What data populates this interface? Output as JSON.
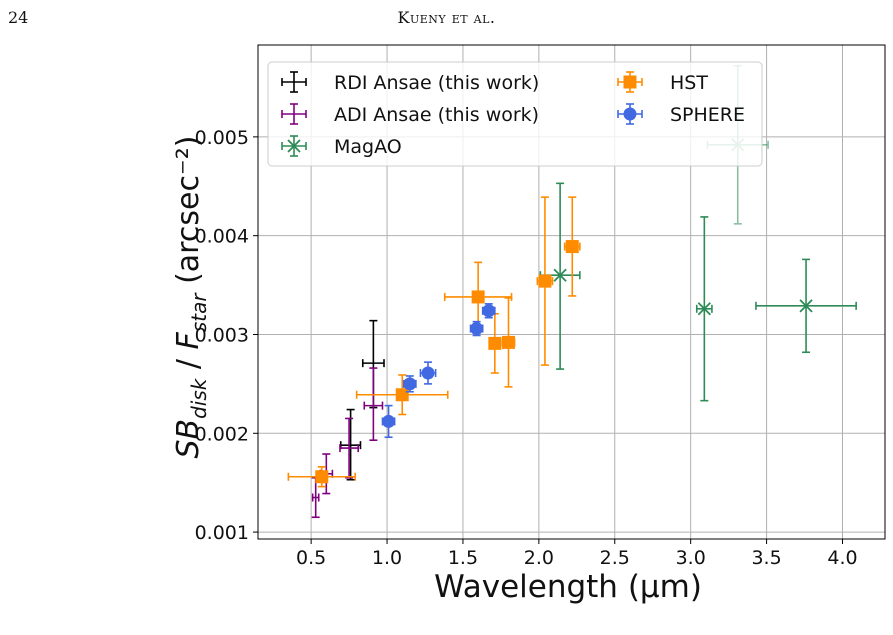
{
  "page": {
    "number": "24",
    "running_head": "Kueny et al."
  },
  "colors": {
    "rdi": "#000000",
    "adi": "#800080",
    "magao": "#2e8b57",
    "hst": "#ff8c00",
    "sphere": "#4169e1"
  },
  "chart_data": {
    "type": "scatter",
    "xlabel": "Wavelength (µm)",
    "ylabel": "SB_disk / F_star (arcsec⁻²)",
    "xlim": [
      0.15,
      4.28
    ],
    "ylim": [
      0.00093,
      0.00593
    ],
    "xticks": [
      0.5,
      1.0,
      1.5,
      2.0,
      2.5,
      3.0,
      3.5,
      4.0
    ],
    "xtick_labels": [
      "0.5",
      "1.0",
      "1.5",
      "2.0",
      "2.5",
      "3.0",
      "3.5",
      "4.0"
    ],
    "yticks": [
      0.001,
      0.002,
      0.003,
      0.004,
      0.005
    ],
    "ytick_labels": [
      "0.001",
      "0.002",
      "0.003",
      "0.004",
      "0.005"
    ],
    "grid": true,
    "legend_position": "top-left",
    "series": [
      {
        "name": "RDI Ansae (this work)",
        "marker": "none",
        "color_key": "rdi",
        "points": [
          {
            "x": 0.76,
            "y": 0.00188,
            "xerr": 0.065,
            "yerr_lo": 0.00035,
            "yerr_hi": 0.00036
          },
          {
            "x": 0.91,
            "y": 0.00271,
            "xerr": 0.07,
            "yerr_lo": 0.00045,
            "yerr_hi": 0.00043
          }
        ]
      },
      {
        "name": "ADI Ansae (this work)",
        "marker": "none",
        "color_key": "adi",
        "points": [
          {
            "x": 0.53,
            "y": 0.00135,
            "xerr": 0.02,
            "yerr_lo": 0.0002,
            "yerr_hi": 0.0002
          },
          {
            "x": 0.6,
            "y": 0.00159,
            "xerr": 0.04,
            "yerr_lo": 0.0002,
            "yerr_hi": 0.0002
          },
          {
            "x": 0.75,
            "y": 0.00185,
            "xerr": 0.06,
            "yerr_lo": 0.0003,
            "yerr_hi": 0.0003
          },
          {
            "x": 0.91,
            "y": 0.00228,
            "xerr": 0.06,
            "yerr_lo": 0.00035,
            "yerr_hi": 0.00038
          }
        ]
      },
      {
        "name": "MagAO",
        "marker": "x",
        "color_key": "magao",
        "points": [
          {
            "x": 2.14,
            "y": 0.0036,
            "xerr": 0.13,
            "yerr_lo": 0.00095,
            "yerr_hi": 0.00093,
            "faded": false
          },
          {
            "x": 3.09,
            "y": 0.00326,
            "xerr": 0.05,
            "yerr_lo": 0.00093,
            "yerr_hi": 0.00093,
            "faded": false
          },
          {
            "x": 3.76,
            "y": 0.00329,
            "xerr": 0.33,
            "yerr_lo": 0.00047,
            "yerr_hi": 0.00047,
            "faded": false
          },
          {
            "x": 3.31,
            "y": 0.00492,
            "xerr": 0.2,
            "yerr_lo": 0.0008,
            "yerr_hi": 0.0008,
            "faded": true
          }
        ]
      },
      {
        "name": "HST",
        "marker": "square",
        "color_key": "hst",
        "points": [
          {
            "x": 0.57,
            "y": 0.00156,
            "xerr": 0.22,
            "yerr_lo": 0.0001,
            "yerr_hi": 0.0001
          },
          {
            "x": 1.1,
            "y": 0.00239,
            "xerr": 0.3,
            "yerr_lo": 0.0002,
            "yerr_hi": 0.0002
          },
          {
            "x": 1.6,
            "y": 0.00338,
            "xerr": 0.22,
            "yerr_lo": 0.00035,
            "yerr_hi": 0.00035
          },
          {
            "x": 1.71,
            "y": 0.00291,
            "xerr": 0.03,
            "yerr_lo": 0.0003,
            "yerr_hi": 0.0003
          },
          {
            "x": 1.8,
            "y": 0.00292,
            "xerr": 0.04,
            "yerr_lo": 0.00045,
            "yerr_hi": 0.00045
          },
          {
            "x": 2.04,
            "y": 0.00354,
            "xerr": 0.05,
            "yerr_lo": 0.00085,
            "yerr_hi": 0.00085
          },
          {
            "x": 2.22,
            "y": 0.00389,
            "xerr": 0.05,
            "yerr_lo": 0.0005,
            "yerr_hi": 0.0005
          }
        ]
      },
      {
        "name": "SPHERE",
        "marker": "circle",
        "color_key": "sphere",
        "points": [
          {
            "x": 1.01,
            "y": 0.00212,
            "xerr": 0.04,
            "yerr_lo": 0.00016,
            "yerr_hi": 0.00016
          },
          {
            "x": 1.15,
            "y": 0.0025,
            "xerr": 0.04,
            "yerr_lo": 8e-05,
            "yerr_hi": 8e-05
          },
          {
            "x": 1.27,
            "y": 0.00261,
            "xerr": 0.05,
            "yerr_lo": 0.00011,
            "yerr_hi": 0.00011
          },
          {
            "x": 1.59,
            "y": 0.00306,
            "xerr": 0.04,
            "yerr_lo": 7e-05,
            "yerr_hi": 7e-05
          },
          {
            "x": 1.67,
            "y": 0.00324,
            "xerr": 0.04,
            "yerr_lo": 7e-05,
            "yerr_hi": 7e-05
          }
        ]
      }
    ]
  }
}
